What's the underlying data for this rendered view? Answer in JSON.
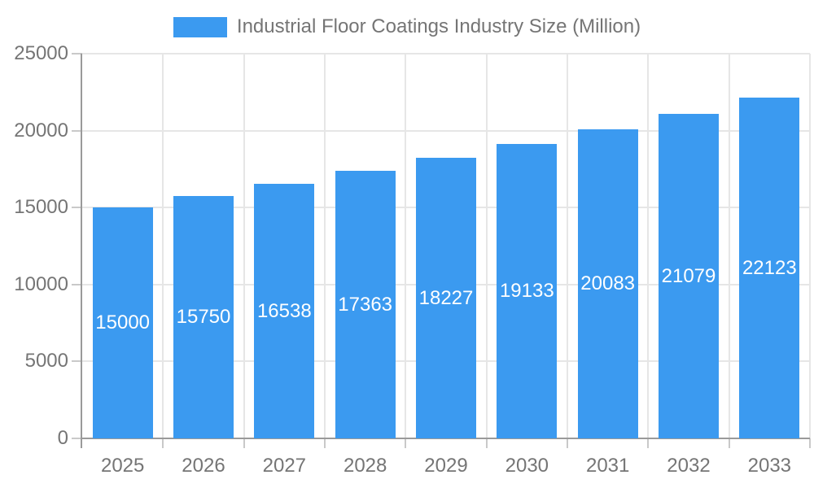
{
  "colors": {
    "bar": "#3b9af0",
    "grid": "#e6e6e6",
    "axis": "#9a9a9a",
    "tick": "#c9c9c9",
    "text": "#757575",
    "value_label": "#ffffff",
    "background": "#ffffff"
  },
  "legend": {
    "label": "Industrial Floor Coatings Industry Size (Million)"
  },
  "chart_data": {
    "type": "bar",
    "title": "Industrial Floor Coatings Industry Size (Million)",
    "categories": [
      "2025",
      "2026",
      "2027",
      "2028",
      "2029",
      "2030",
      "2031",
      "2032",
      "2033"
    ],
    "values": [
      15000,
      15750,
      16538,
      17363,
      18227,
      19133,
      20083,
      21079,
      22123
    ],
    "xlabel": "",
    "ylabel": "",
    "ylim": [
      0,
      25000
    ],
    "yticks": [
      0,
      5000,
      10000,
      15000,
      20000,
      25000
    ],
    "grid": true,
    "legend_position": "top",
    "value_labels": "inside-center"
  }
}
